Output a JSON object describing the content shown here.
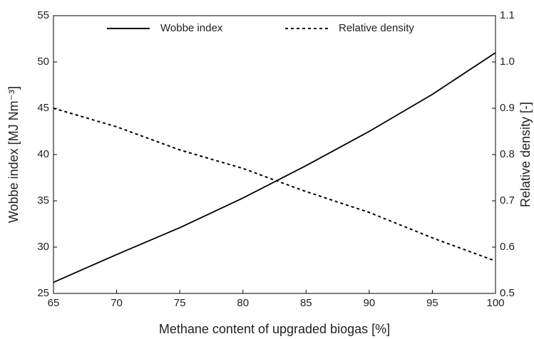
{
  "chart_data": {
    "type": "line",
    "xlabel": "Methane content of upgraded biogas [%]",
    "ylabel": "Wobbe index [MJ Nm⁻³]",
    "y2label": "Relative density [-]",
    "x": [
      65,
      70,
      75,
      80,
      85,
      90,
      95,
      100
    ],
    "series": [
      {
        "name": "Wobbe index",
        "color": "#000000",
        "style": "solid",
        "values": [
          26.2,
          29.2,
          32.1,
          35.3,
          38.8,
          42.5,
          46.5,
          51.0
        ]
      },
      {
        "name": "Relative density",
        "color": "#000000",
        "style": "dashed",
        "axis": "y2",
        "values": [
          0.9,
          0.86,
          0.81,
          0.77,
          0.72,
          0.675,
          0.62,
          0.57
        ]
      }
    ],
    "xlim": [
      65,
      100
    ],
    "xticks": [
      65,
      70,
      75,
      80,
      85,
      90,
      95,
      100
    ],
    "ylim": [
      25,
      55
    ],
    "yticks": [
      25,
      30,
      35,
      40,
      45,
      50,
      55
    ],
    "y2lim": [
      0.5,
      1.1
    ],
    "y2ticks": [
      0.5,
      0.6,
      0.7,
      0.8,
      0.9,
      {
        "value": 1,
        "label": "1.0"
      },
      1.1
    ],
    "legend": "upper center",
    "grid": false
  }
}
